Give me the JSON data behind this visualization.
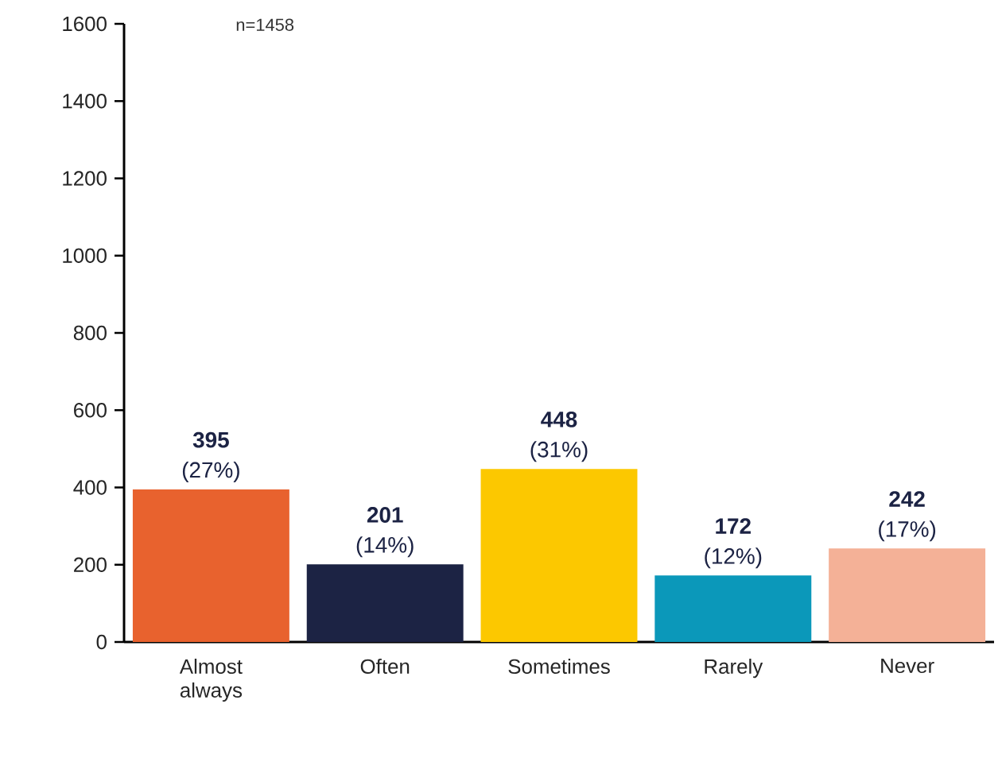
{
  "chart_data": {
    "type": "bar",
    "categories": [
      "Almost always",
      "Often",
      "Sometimes",
      "Rarely",
      "Never"
    ],
    "values": [
      395,
      201,
      448,
      172,
      242
    ],
    "colors": [
      "#e8622e",
      "#1c2344",
      "#fcc800",
      "#0b98ba",
      "#f4b197"
    ],
    "value_labels": [
      "**395** (27%)",
      "**201** (14%)",
      "**448** (31%)",
      "**172** (12%)",
      "**242** (17%)"
    ],
    "ylim": [
      0,
      1600
    ],
    "yticks": [
      0,
      200,
      400,
      600,
      800,
      1000,
      1200,
      1400,
      1600
    ],
    "annotations": [
      "n=1458"
    ]
  }
}
